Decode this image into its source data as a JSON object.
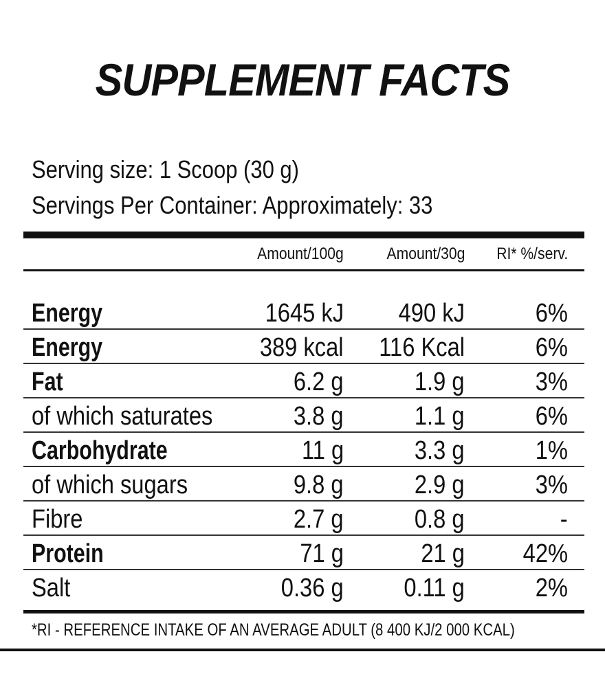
{
  "title": "SUPPLEMENT FACTS",
  "serving": {
    "size_line": "Serving size: 1 Scoop (30 g)",
    "per_container_line": "Servings Per Container: Approximately: 33"
  },
  "columns": {
    "per_100g": "Amount/100g",
    "per_30g": "Amount/30g",
    "ri": "RI* %/serv."
  },
  "rows": [
    {
      "name": "Energy",
      "bold": true,
      "per_100g": "1645 kJ",
      "per_30g": "490 kJ",
      "ri": "6%"
    },
    {
      "name": "Energy",
      "bold": true,
      "per_100g": "389 kcal",
      "per_30g": "116 Kcal",
      "ri": "6%"
    },
    {
      "name": "Fat",
      "bold": true,
      "per_100g": "6.2 g",
      "per_30g": "1.9 g",
      "ri": "3%"
    },
    {
      "name": "of which saturates",
      "bold": false,
      "per_100g": "3.8 g",
      "per_30g": "1.1 g",
      "ri": "6%"
    },
    {
      "name": "Carbohydrate",
      "bold": true,
      "per_100g": "11 g",
      "per_30g": "3.3 g",
      "ri": "1%"
    },
    {
      "name": "of which sugars",
      "bold": false,
      "per_100g": "9.8 g",
      "per_30g": "2.9 g",
      "ri": "3%"
    },
    {
      "name": "Fibre",
      "bold": false,
      "per_100g": "2.7 g",
      "per_30g": "0.8 g",
      "ri": "-"
    },
    {
      "name": "Protein",
      "bold": true,
      "per_100g": "71 g",
      "per_30g": "21 g",
      "ri": "42%"
    },
    {
      "name": "Salt",
      "bold": false,
      "per_100g": "0.36 g",
      "per_30g": "0.11 g",
      "ri": "2%"
    }
  ],
  "footnote": "*RI - REFERENCE INTAKE OF AN AVERAGE ADULT (8 400 KJ/2 000 KCAL)"
}
